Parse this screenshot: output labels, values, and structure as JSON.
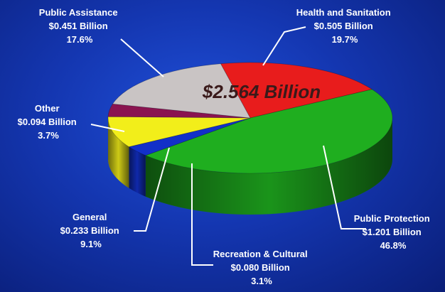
{
  "chart_data": {
    "type": "pie",
    "total_label": "$2.564 Billion",
    "slices": [
      {
        "label": "Health and Sanitation",
        "value_text": "$0.505 Billion",
        "percent_text": "19.7%",
        "value": 0.505,
        "percent": 19.7,
        "color": "#e81c1c"
      },
      {
        "label": "Public Protection",
        "value_text": "$1.201 Billion",
        "percent_text": "46.8%",
        "value": 1.201,
        "percent": 46.8,
        "color": "#1fae1f"
      },
      {
        "label": "Recreation & Cultural",
        "value_text": "$0.080 Billion",
        "percent_text": "3.1%",
        "value": 0.08,
        "percent": 3.1,
        "color": "#1230c8"
      },
      {
        "label": "General",
        "value_text": "$0.233 Billion",
        "percent_text": "9.1%",
        "value": 0.233,
        "percent": 9.1,
        "color": "#f2ee1a"
      },
      {
        "label": "Other",
        "value_text": "$0.094 Billion",
        "percent_text": "3.7%",
        "value": 0.094,
        "percent": 3.7,
        "color": "#8a1450"
      },
      {
        "label": "Public Assistance",
        "value_text": "$0.451 Billion",
        "percent_text": "17.6%",
        "value": 0.451,
        "percent": 17.6,
        "color": "#c9c4c4"
      }
    ]
  }
}
